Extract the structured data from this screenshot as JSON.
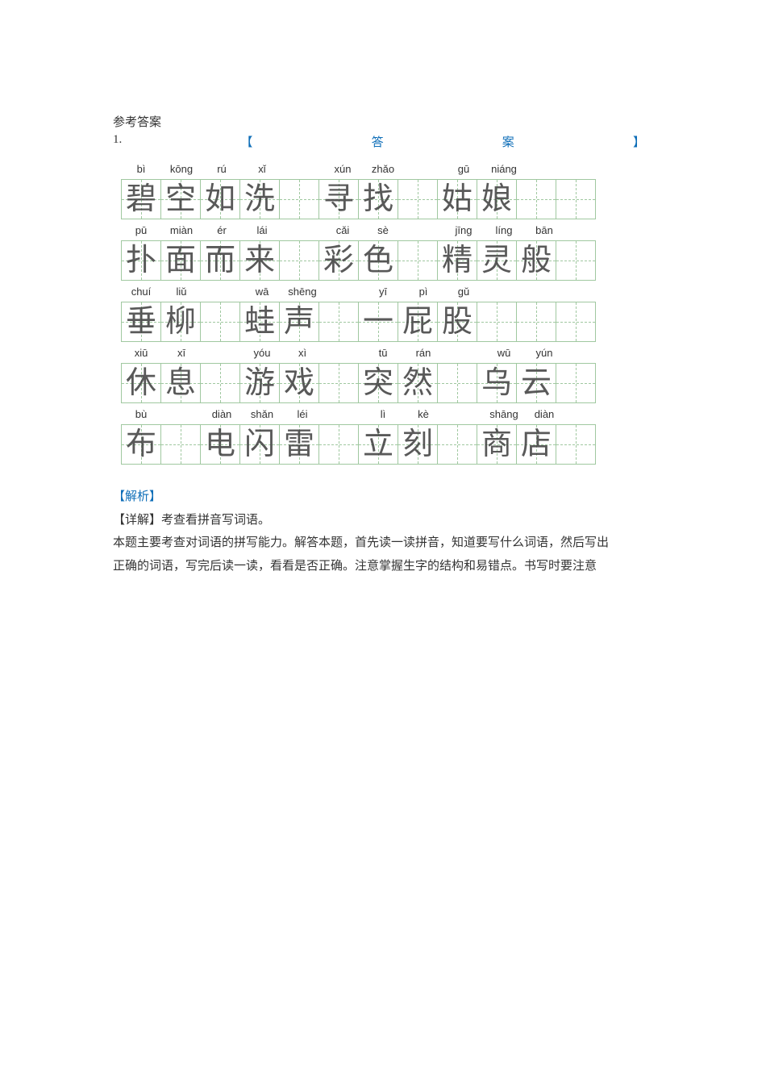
{
  "header": {
    "refTitle": "参考答案",
    "qNumber": "1.",
    "brkOpen": "【",
    "answerWord1": "答",
    "answerWord2": "案",
    "brkClose": "】"
  },
  "rows": [
    {
      "cells": [
        {
          "py": "bì",
          "ch": "碧"
        },
        {
          "py": "kōng",
          "ch": "空"
        },
        {
          "py": "rú",
          "ch": "如"
        },
        {
          "py": "xǐ",
          "ch": "洗"
        },
        {
          "py": "",
          "ch": ""
        },
        {
          "py": "xún",
          "ch": "寻"
        },
        {
          "py": "zhǎo",
          "ch": "找"
        },
        {
          "py": "",
          "ch": ""
        },
        {
          "py": "gū",
          "ch": "姑"
        },
        {
          "py": "niáng",
          "ch": "娘"
        },
        {
          "py": "",
          "ch": ""
        },
        {
          "py": "",
          "ch": ""
        }
      ]
    },
    {
      "cells": [
        {
          "py": "pū",
          "ch": "扑"
        },
        {
          "py": "miàn",
          "ch": "面"
        },
        {
          "py": "ér",
          "ch": "而"
        },
        {
          "py": "lái",
          "ch": "来"
        },
        {
          "py": "",
          "ch": ""
        },
        {
          "py": "cǎi",
          "ch": "彩"
        },
        {
          "py": "sè",
          "ch": "色"
        },
        {
          "py": "",
          "ch": ""
        },
        {
          "py": "jīng",
          "ch": "精"
        },
        {
          "py": "líng",
          "ch": "灵"
        },
        {
          "py": "bān",
          "ch": "般"
        },
        {
          "py": "",
          "ch": ""
        }
      ]
    },
    {
      "cells": [
        {
          "py": "chuí",
          "ch": "垂"
        },
        {
          "py": "liǔ",
          "ch": "柳"
        },
        {
          "py": "",
          "ch": ""
        },
        {
          "py": "wā",
          "ch": "蛙"
        },
        {
          "py": "shēng",
          "ch": "声"
        },
        {
          "py": "",
          "ch": ""
        },
        {
          "py": "yī",
          "ch": "一"
        },
        {
          "py": "pì",
          "ch": "屁"
        },
        {
          "py": "gǔ",
          "ch": "股"
        },
        {
          "py": "",
          "ch": ""
        },
        {
          "py": "",
          "ch": ""
        },
        {
          "py": "",
          "ch": ""
        }
      ]
    },
    {
      "cells": [
        {
          "py": "xiū",
          "ch": "休"
        },
        {
          "py": "xī",
          "ch": "息"
        },
        {
          "py": "",
          "ch": ""
        },
        {
          "py": "yóu",
          "ch": "游"
        },
        {
          "py": "xì",
          "ch": "戏"
        },
        {
          "py": "",
          "ch": ""
        },
        {
          "py": "tū",
          "ch": "突"
        },
        {
          "py": "rán",
          "ch": "然"
        },
        {
          "py": "",
          "ch": ""
        },
        {
          "py": "wū",
          "ch": "乌"
        },
        {
          "py": "yún",
          "ch": "云"
        },
        {
          "py": "",
          "ch": ""
        }
      ]
    },
    {
      "cells": [
        {
          "py": "bù",
          "ch": "布"
        },
        {
          "py": "",
          "ch": ""
        },
        {
          "py": "diàn",
          "ch": "电"
        },
        {
          "py": "shǎn",
          "ch": "闪"
        },
        {
          "py": "léi",
          "ch": "雷"
        },
        {
          "py": "",
          "ch": ""
        },
        {
          "py": "lì",
          "ch": "立"
        },
        {
          "py": "kè",
          "ch": "刻"
        },
        {
          "py": "",
          "ch": ""
        },
        {
          "py": "shāng",
          "ch": "商"
        },
        {
          "py": "diàn",
          "ch": "店"
        },
        {
          "py": "",
          "ch": ""
        }
      ]
    }
  ],
  "analysis": {
    "title": "【解析】",
    "detail": "【详解】考查看拼音写词语。",
    "body1": "本题主要考查对词语的拼写能力。解答本题，首先读一读拼音，知道要写什么词语，然后写出",
    "body2": "正确的词语，写完后读一读，看看是否正确。注意掌握生字的结构和易错点。书写时要注意"
  },
  "colors": {
    "accent": "#0e6eb8",
    "grid": "#a0c8a0",
    "text": "#333333",
    "glyph": "rgba(60,60,60,0.85)"
  }
}
